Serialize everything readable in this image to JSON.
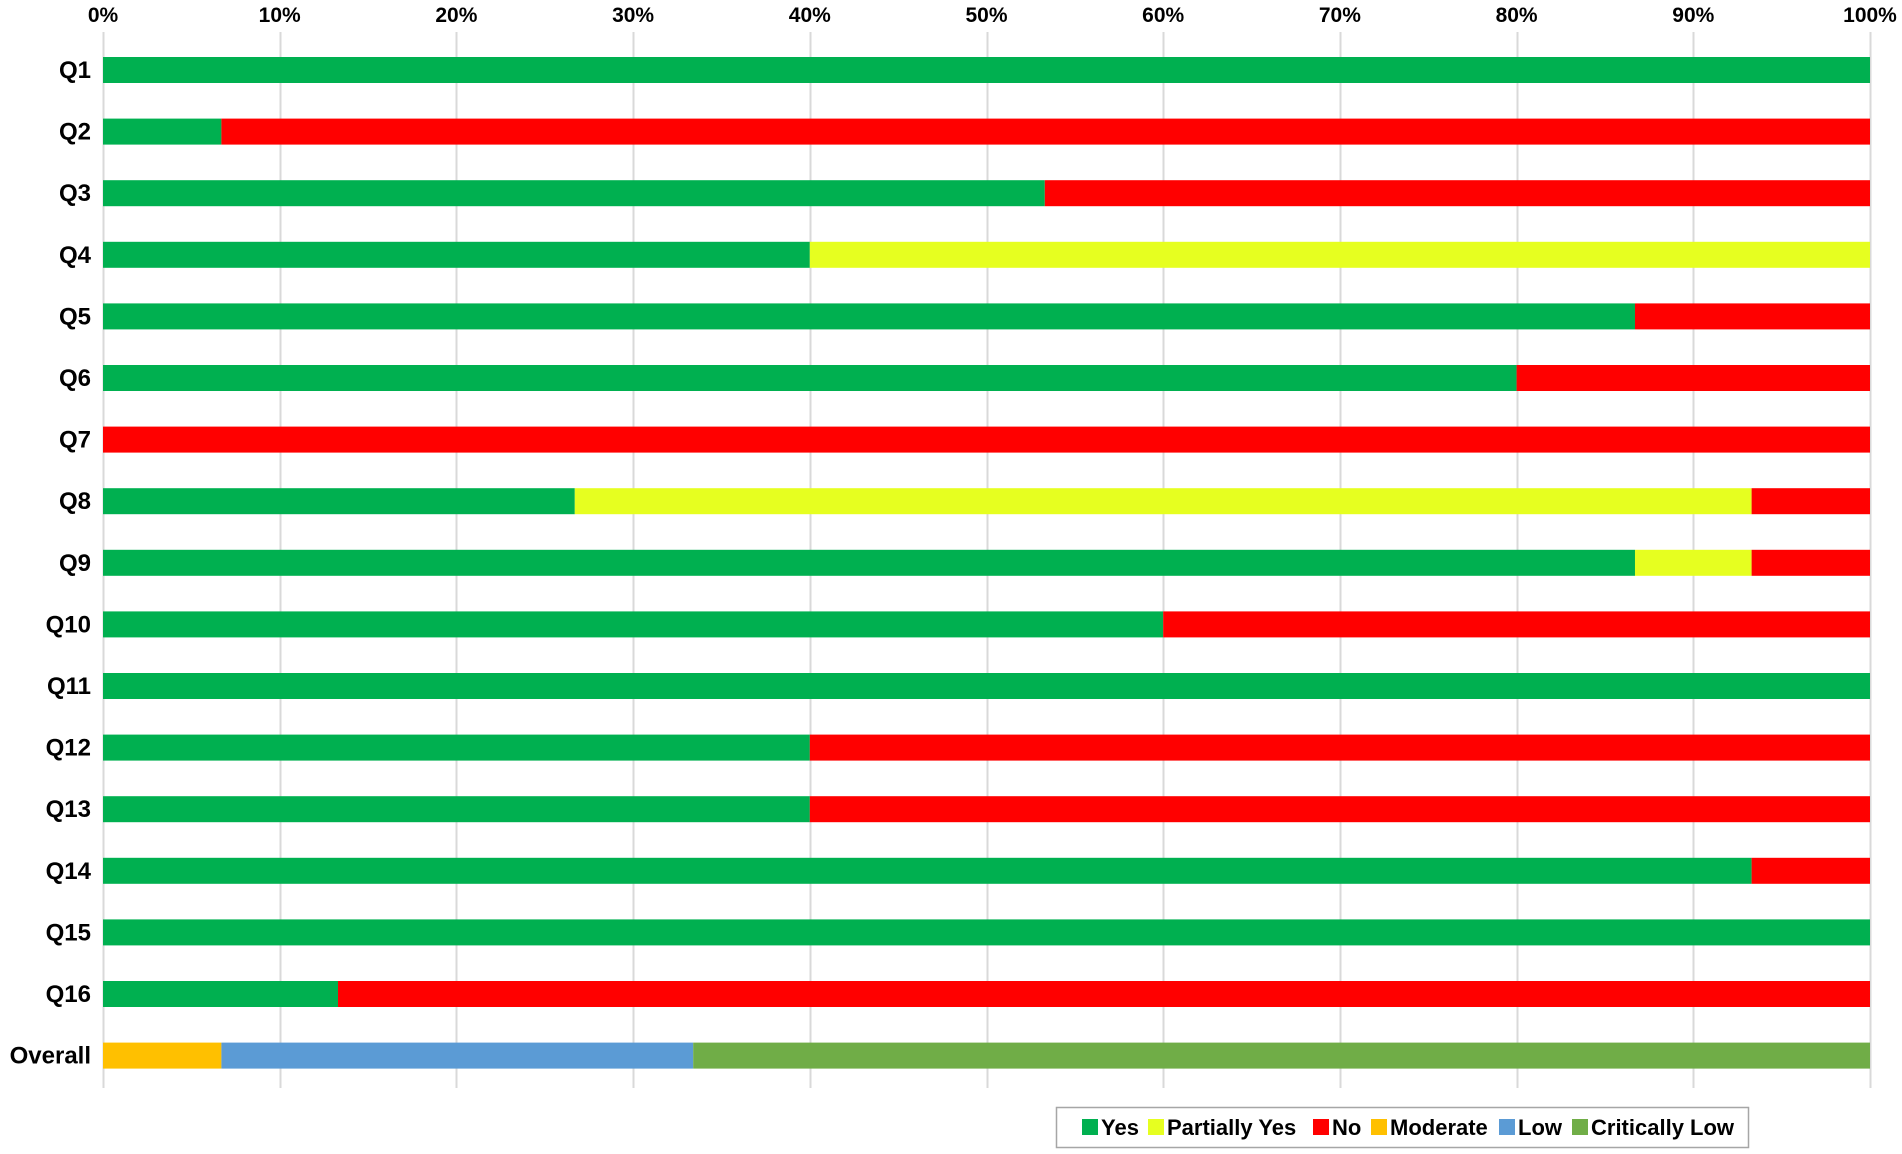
{
  "chart_data": {
    "type": "bar",
    "orientation": "horizontal",
    "stacked": "percent",
    "xlim": [
      0,
      100
    ],
    "x_ticks": [
      0,
      10,
      20,
      30,
      40,
      50,
      60,
      70,
      80,
      90,
      100
    ],
    "x_tick_labels": [
      "0%",
      "10%",
      "20%",
      "30%",
      "40%",
      "50%",
      "60%",
      "70%",
      "80%",
      "90%",
      "100%"
    ],
    "x_axis_position": "top",
    "grid": true,
    "legend_position": "bottom-right",
    "categories": [
      "Q1",
      "Q2",
      "Q3",
      "Q4",
      "Q5",
      "Q6",
      "Q7",
      "Q8",
      "Q9",
      "Q10",
      "Q11",
      "Q12",
      "Q13",
      "Q14",
      "Q15",
      "Q16",
      "Overall"
    ],
    "series": [
      {
        "name": "Yes",
        "color": "#00B050",
        "values": [
          100,
          6.7,
          53.3,
          40,
          86.7,
          80,
          0,
          26.7,
          86.7,
          60,
          100,
          40,
          40,
          93.3,
          100,
          13.3,
          0
        ]
      },
      {
        "name": "Partially Yes",
        "color": "#E6FF20",
        "values": [
          0,
          0,
          0,
          60,
          0,
          0,
          0,
          66.6,
          6.6,
          0,
          0,
          0,
          0,
          0,
          0,
          0,
          0
        ]
      },
      {
        "name": "No",
        "color": "#FF0000",
        "values": [
          0,
          93.3,
          46.7,
          0,
          13.3,
          20,
          100,
          6.7,
          6.7,
          40,
          0,
          60,
          60,
          6.7,
          0,
          86.7,
          0
        ]
      },
      {
        "name": "Moderate",
        "color": "#FFC000",
        "values": [
          0,
          0,
          0,
          0,
          0,
          0,
          0,
          0,
          0,
          0,
          0,
          0,
          0,
          0,
          0,
          0,
          6.7
        ]
      },
      {
        "name": "Low",
        "color": "#5B9BD5",
        "values": [
          0,
          0,
          0,
          0,
          0,
          0,
          0,
          0,
          0,
          0,
          0,
          0,
          0,
          0,
          0,
          0,
          26.7
        ]
      },
      {
        "name": "Critically Low",
        "color": "#70AD47",
        "values": [
          0,
          0,
          0,
          0,
          0,
          0,
          0,
          0,
          0,
          0,
          0,
          0,
          0,
          0,
          0,
          0,
          66.6
        ]
      }
    ],
    "colors": {
      "grid": "#D9D9D9",
      "legend_border": "#A6A6A6",
      "text": "#000000"
    }
  }
}
